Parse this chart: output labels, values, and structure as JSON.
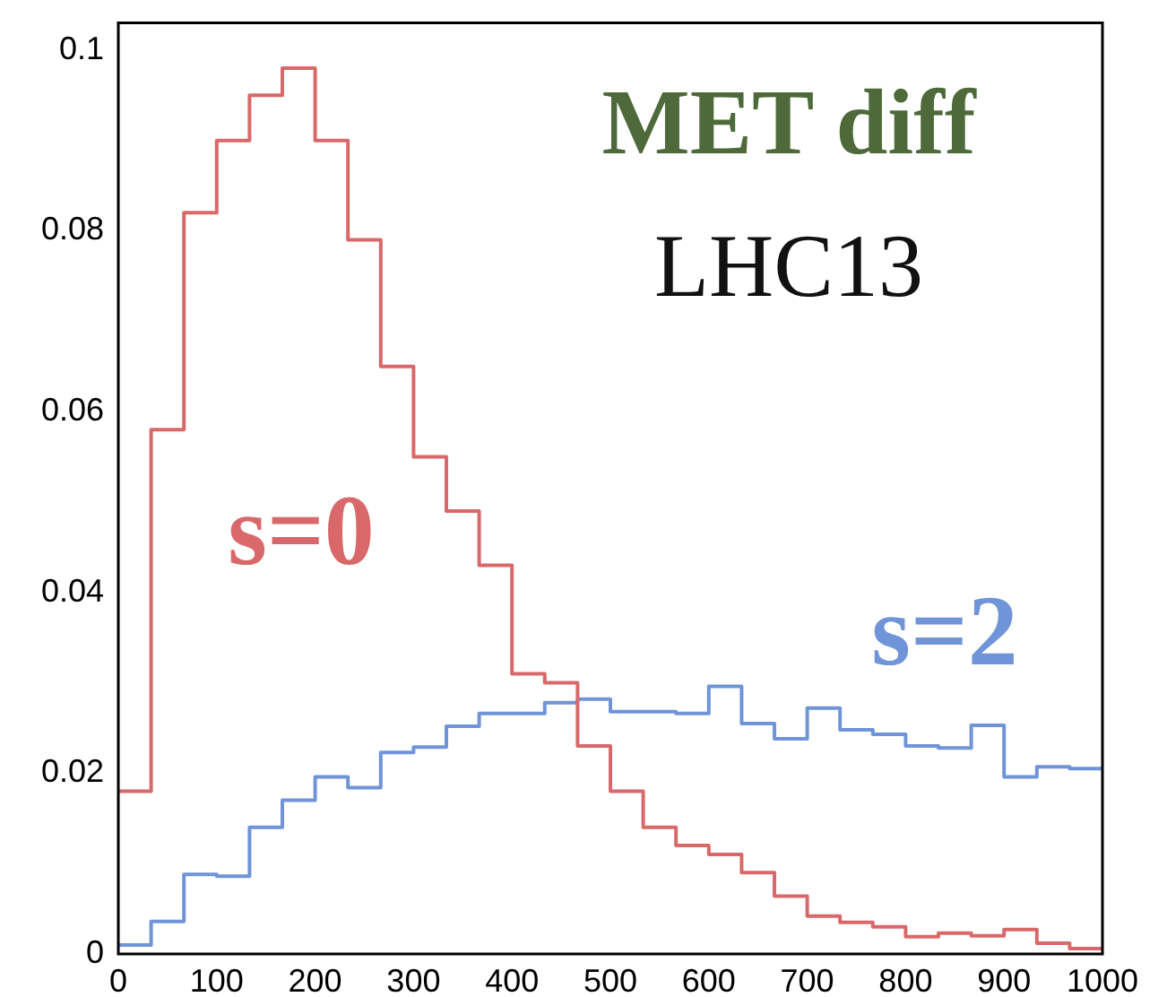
{
  "chart_data": {
    "type": "histogram",
    "bins": [
      0,
      33.33,
      66.67,
      100,
      133.33,
      166.67,
      200,
      233.33,
      266.67,
      300,
      333.33,
      366.67,
      400,
      433.33,
      466.67,
      500,
      533.33,
      566.67,
      600,
      633.33,
      666.67,
      700,
      733.33,
      766.67,
      800,
      833.33,
      866.67,
      900,
      933.33,
      966.67,
      1000
    ],
    "series": [
      {
        "name": "s=0",
        "color": "#d9686a",
        "values": [
          0.018,
          0.058,
          0.082,
          0.09,
          0.095,
          0.098,
          0.09,
          0.079,
          0.065,
          0.055,
          0.049,
          0.043,
          0.031,
          0.03,
          0.023,
          0.018,
          0.014,
          0.012,
          0.011,
          0.009,
          0.0064,
          0.0042,
          0.0035,
          0.003,
          0.0019,
          0.0023,
          0.002,
          0.0027,
          0.0012,
          0.0006
        ]
      },
      {
        "name": "s=2",
        "color": "#7094d8",
        "values": [
          0.001,
          0.0036,
          0.0088,
          0.0086,
          0.014,
          0.017,
          0.0196,
          0.0184,
          0.0223,
          0.0229,
          0.0252,
          0.0266,
          0.0266,
          0.0278,
          0.0282,
          0.0268,
          0.0268,
          0.0266,
          0.0296,
          0.0255,
          0.0238,
          0.0272,
          0.0248,
          0.0243,
          0.023,
          0.0228,
          0.0253,
          0.0196,
          0.0207,
          0.0205
        ]
      }
    ],
    "annotations": [
      "MET diff",
      "LHC13"
    ],
    "xlim": [
      0,
      1000
    ],
    "xticks": [
      0,
      100,
      200,
      300,
      400,
      500,
      600,
      700,
      800,
      900,
      1000
    ],
    "ylim": [
      0,
      0.103
    ],
    "yticks": [
      0,
      0.02,
      0.04,
      0.06,
      0.08,
      0.1
    ],
    "grid": false,
    "legend": false
  }
}
